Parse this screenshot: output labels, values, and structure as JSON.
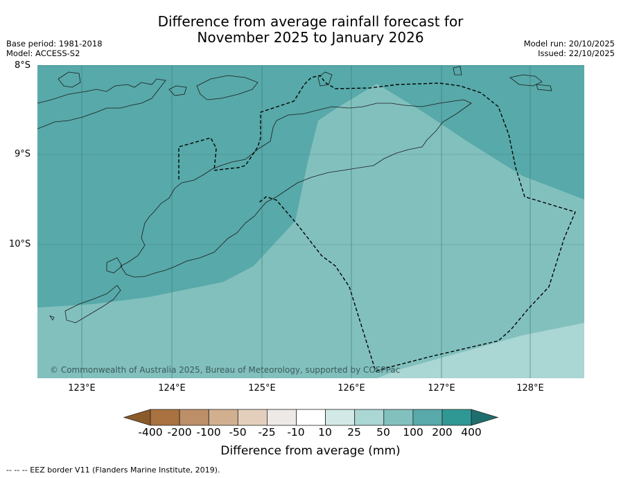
{
  "title_line1": "Difference from average rainfall forecast for",
  "title_line2": "November 2025 to January 2026",
  "meta_left": {
    "base_period": "Base period: 1981-2018",
    "model": "Model: ACCESS-S2"
  },
  "meta_right": {
    "model_run": "Model run: 20/10/2025",
    "issued": "Issued: 22/10/2025"
  },
  "lat_labels": [
    "8°S",
    "9°S",
    "10°S"
  ],
  "lon_labels": [
    "123°E",
    "124°E",
    "125°E",
    "126°E",
    "127°E",
    "128°E"
  ],
  "credit": "© Commonwealth of Australia 2025, Bureau of Meteorology, supported by COSPPac",
  "colorbar": {
    "ticks": [
      "-400",
      "-200",
      "-100",
      "-50",
      "-25",
      "-10",
      "10",
      "25",
      "50",
      "100",
      "200",
      "400"
    ],
    "label": "Difference from average (mm)",
    "colors": [
      "#8b5a2b",
      "#a97240",
      "#bd8f68",
      "#d2b08f",
      "#e3cfbc",
      "#ece9e6",
      "#ffffff",
      "#d2e9e7",
      "#aad6d4",
      "#82c0be",
      "#58a9a9",
      "#2f9894",
      "#1f6e6e"
    ]
  },
  "footnote": "--  --  -- EEZ border V11 (Flanders Marine Institute, 2019).",
  "map_colors": {
    "dark_teal": "#58a9a9",
    "medium_teal": "#82c0be",
    "light_teal": "#aad6d4"
  }
}
